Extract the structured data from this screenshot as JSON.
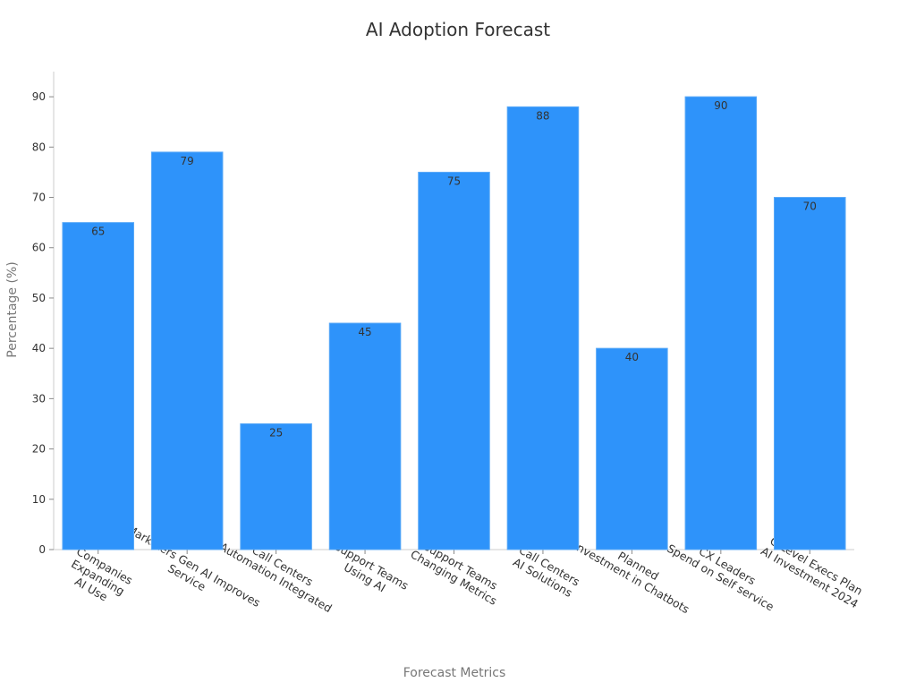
{
  "chart_data": {
    "type": "bar",
    "title": "AI Adoption Forecast",
    "xlabel": "Forecast Metrics",
    "ylabel": "Percentage (%)",
    "ylim": [
      0,
      95
    ],
    "yticks": [
      0,
      10,
      20,
      30,
      40,
      50,
      60,
      70,
      80,
      90
    ],
    "grid": false,
    "bar_color": "#2e93fa",
    "categories": [
      [
        "Companies",
        "Expanding",
        "AI Use"
      ],
      [
        "Marketers Gen AI Improves",
        "Service"
      ],
      [
        "Call Centers",
        "Automation Integrated"
      ],
      [
        "Support Teams",
        "Using AI"
      ],
      [
        "Support Teams",
        "Changing Metrics"
      ],
      [
        "Call Centers",
        "AI Solutions"
      ],
      [
        "Planned",
        "Investment in Chatbots"
      ],
      [
        "CX Leaders",
        "Spend on Self service"
      ],
      [
        "C-Level Execs Plan",
        "AI Investment 2024"
      ]
    ],
    "values": [
      65,
      79,
      25,
      45,
      75,
      88,
      40,
      90,
      70
    ]
  }
}
